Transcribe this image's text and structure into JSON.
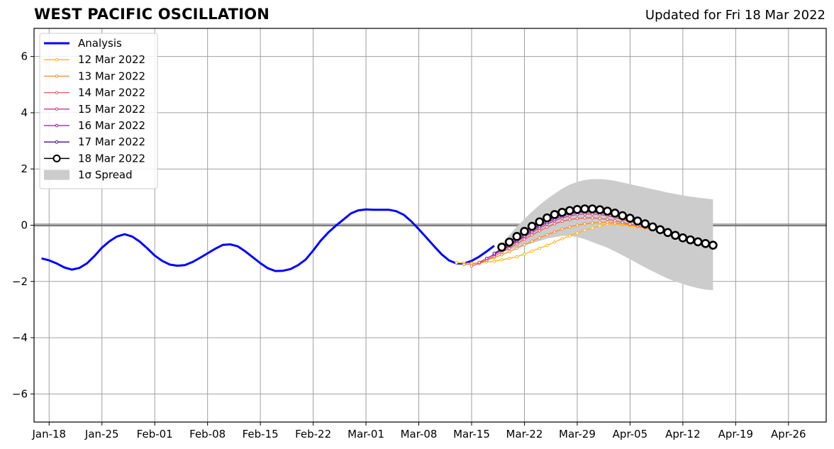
{
  "header": {
    "title": "WEST PACIFIC OSCILLATION",
    "updated": "Updated for Fri 18 Mar 2022"
  },
  "chart_data": {
    "type": "line",
    "title": "WEST PACIFIC OSCILLATION",
    "subtitle": "Updated for Fri 18 Mar 2022",
    "xlabel": "",
    "ylabel": "",
    "xlim": [
      "2022-01-16",
      "2022-05-01"
    ],
    "ylim": [
      -7,
      7
    ],
    "x_ticks": [
      "2022-01-18",
      "2022-01-25",
      "2022-02-01",
      "2022-02-08",
      "2022-02-15",
      "2022-02-22",
      "2022-03-01",
      "2022-03-08",
      "2022-03-15",
      "2022-03-22",
      "2022-03-29",
      "2022-04-05",
      "2022-04-12",
      "2022-04-19",
      "2022-04-26"
    ],
    "x_tick_labels": [
      "Jan-18",
      "Jan-25",
      "Feb-01",
      "Feb-08",
      "Feb-15",
      "Feb-22",
      "Mar-01",
      "Mar-08",
      "Mar-15",
      "Mar-22",
      "Mar-29",
      "Apr-05",
      "Apr-12",
      "Apr-19",
      "Apr-26"
    ],
    "y_ticks": [
      -6,
      -4,
      -2,
      0,
      2,
      4,
      6
    ],
    "y_tick_labels": [
      "−6",
      "−4",
      "−2",
      "0",
      "2",
      "4",
      "6"
    ],
    "grid": true,
    "legend_position": "top-left",
    "analysis": {
      "name": "Analysis",
      "color": "#0000ff",
      "x": [
        "2022-01-17",
        "2022-01-18",
        "2022-01-19",
        "2022-01-20",
        "2022-01-21",
        "2022-01-22",
        "2022-01-23",
        "2022-01-24",
        "2022-01-25",
        "2022-01-26",
        "2022-01-27",
        "2022-01-28",
        "2022-01-29",
        "2022-01-30",
        "2022-01-31",
        "2022-02-01",
        "2022-02-02",
        "2022-02-03",
        "2022-02-04",
        "2022-02-05",
        "2022-02-06",
        "2022-02-07",
        "2022-02-08",
        "2022-02-09",
        "2022-02-10",
        "2022-02-11",
        "2022-02-12",
        "2022-02-13",
        "2022-02-14",
        "2022-02-15",
        "2022-02-16",
        "2022-02-17",
        "2022-02-18",
        "2022-02-19",
        "2022-02-20",
        "2022-02-21",
        "2022-02-22",
        "2022-02-23",
        "2022-02-24",
        "2022-02-25",
        "2022-02-26",
        "2022-02-27",
        "2022-02-28",
        "2022-03-01",
        "2022-03-02",
        "2022-03-03",
        "2022-03-04",
        "2022-03-05",
        "2022-03-06",
        "2022-03-07",
        "2022-03-08",
        "2022-03-09",
        "2022-03-10",
        "2022-03-11",
        "2022-03-12",
        "2022-03-13",
        "2022-03-14",
        "2022-03-15",
        "2022-03-16",
        "2022-03-17",
        "2022-03-18"
      ],
      "values": [
        -1.18,
        -1.25,
        -1.36,
        -1.5,
        -1.58,
        -1.52,
        -1.36,
        -1.1,
        -0.8,
        -0.57,
        -0.4,
        -0.32,
        -0.4,
        -0.58,
        -0.82,
        -1.08,
        -1.27,
        -1.4,
        -1.44,
        -1.42,
        -1.31,
        -1.16,
        -1.0,
        -0.84,
        -0.7,
        -0.68,
        -0.75,
        -0.93,
        -1.14,
        -1.35,
        -1.53,
        -1.63,
        -1.62,
        -1.56,
        -1.42,
        -1.22,
        -0.9,
        -0.55,
        -0.26,
        -0.02,
        0.2,
        0.42,
        0.53,
        0.56,
        0.55,
        0.55,
        0.55,
        0.5,
        0.37,
        0.14,
        -0.14,
        -0.44,
        -0.74,
        -1.03,
        -1.25,
        -1.36,
        -1.36,
        -1.27,
        -1.12,
        -0.93,
        -0.73
      ]
    },
    "spread": {
      "name": "1σ Spread",
      "color": "#cccccc",
      "x": [
        "2022-03-19",
        "2022-03-20",
        "2022-03-21",
        "2022-03-22",
        "2022-03-23",
        "2022-03-24",
        "2022-03-25",
        "2022-03-26",
        "2022-03-27",
        "2022-03-28",
        "2022-03-29",
        "2022-03-30",
        "2022-03-31",
        "2022-04-01",
        "2022-04-02",
        "2022-04-03",
        "2022-04-04",
        "2022-04-05",
        "2022-04-06",
        "2022-04-07",
        "2022-04-08",
        "2022-04-09",
        "2022-04-10",
        "2022-04-11",
        "2022-04-12",
        "2022-04-13",
        "2022-04-14",
        "2022-04-15",
        "2022-04-16"
      ],
      "upper": [
        -0.65,
        -0.35,
        -0.05,
        0.22,
        0.48,
        0.72,
        0.93,
        1.12,
        1.3,
        1.44,
        1.54,
        1.61,
        1.64,
        1.64,
        1.62,
        1.58,
        1.52,
        1.46,
        1.4,
        1.34,
        1.28,
        1.22,
        1.16,
        1.11,
        1.06,
        1.02,
        0.98,
        0.95,
        0.92
      ],
      "lower": [
        -0.95,
        -0.88,
        -0.8,
        -0.72,
        -0.64,
        -0.56,
        -0.48,
        -0.42,
        -0.38,
        -0.38,
        -0.42,
        -0.5,
        -0.6,
        -0.7,
        -0.8,
        -0.93,
        -1.07,
        -1.21,
        -1.36,
        -1.5,
        -1.64,
        -1.77,
        -1.9,
        -2.0,
        -2.09,
        -2.17,
        -2.24,
        -2.29,
        -2.31
      ]
    },
    "series": [
      {
        "name": "12 Mar 2022",
        "color": "#fcb814",
        "x": [
          "2022-03-13",
          "2022-03-14",
          "2022-03-15",
          "2022-03-16",
          "2022-03-17",
          "2022-03-18",
          "2022-03-19",
          "2022-03-20",
          "2022-03-21",
          "2022-03-22",
          "2022-03-23",
          "2022-03-24",
          "2022-03-25",
          "2022-03-26",
          "2022-03-27",
          "2022-03-28",
          "2022-03-29",
          "2022-03-30",
          "2022-03-31",
          "2022-04-01",
          "2022-04-02",
          "2022-04-03",
          "2022-04-04",
          "2022-04-05",
          "2022-04-06",
          "2022-04-07",
          "2022-04-08",
          "2022-04-09",
          "2022-04-10"
        ],
        "values": [
          -1.33,
          -1.35,
          -1.35,
          -1.34,
          -1.31,
          -1.28,
          -1.23,
          -1.18,
          -1.12,
          -1.03,
          -0.92,
          -0.82,
          -0.72,
          -0.6,
          -0.48,
          -0.38,
          -0.28,
          -0.18,
          -0.1,
          -0.02,
          0.03,
          0.04,
          0.02,
          -0.02,
          -0.06,
          -0.1,
          -0.15,
          -0.2,
          -0.28
        ]
      },
      {
        "name": "13 Mar 2022",
        "color": "#f98c2a",
        "x": [
          "2022-03-14",
          "2022-03-15",
          "2022-03-16",
          "2022-03-17",
          "2022-03-18",
          "2022-03-19",
          "2022-03-20",
          "2022-03-21",
          "2022-03-22",
          "2022-03-23",
          "2022-03-24",
          "2022-03-25",
          "2022-03-26",
          "2022-03-27",
          "2022-03-28",
          "2022-03-29",
          "2022-03-30",
          "2022-03-31",
          "2022-04-01",
          "2022-04-02",
          "2022-04-03",
          "2022-04-04",
          "2022-04-05",
          "2022-04-06",
          "2022-04-07",
          "2022-04-08",
          "2022-04-09",
          "2022-04-10",
          "2022-04-11"
        ],
        "values": [
          -1.4,
          -1.38,
          -1.33,
          -1.24,
          -1.15,
          -1.05,
          -0.94,
          -0.82,
          -0.7,
          -0.57,
          -0.45,
          -0.34,
          -0.24,
          -0.14,
          -0.06,
          0.0,
          0.05,
          0.08,
          0.1,
          0.1,
          0.08,
          0.05,
          0.01,
          -0.03,
          -0.08,
          -0.13,
          -0.19,
          -0.25,
          -0.32
        ]
      },
      {
        "name": "14 Mar 2022",
        "color": "#e45a5a",
        "x": [
          "2022-03-15",
          "2022-03-16",
          "2022-03-17",
          "2022-03-18",
          "2022-03-19",
          "2022-03-20",
          "2022-03-21",
          "2022-03-22",
          "2022-03-23",
          "2022-03-24",
          "2022-03-25",
          "2022-03-26",
          "2022-03-27",
          "2022-03-28",
          "2022-03-29",
          "2022-03-30",
          "2022-03-31",
          "2022-04-01",
          "2022-04-02",
          "2022-04-03",
          "2022-04-04",
          "2022-04-05",
          "2022-04-06",
          "2022-04-07",
          "2022-04-08",
          "2022-04-09",
          "2022-04-10",
          "2022-04-11",
          "2022-04-12"
        ],
        "values": [
          -1.45,
          -1.36,
          -1.24,
          -1.1,
          -0.96,
          -0.82,
          -0.66,
          -0.5,
          -0.35,
          -0.2,
          -0.07,
          0.05,
          0.14,
          0.2,
          0.24,
          0.26,
          0.26,
          0.24,
          0.21,
          0.16,
          0.1,
          0.04,
          -0.02,
          -0.08,
          -0.14,
          -0.2,
          -0.26,
          -0.33,
          -0.4
        ]
      },
      {
        "name": "15 Mar 2022",
        "color": "#c43a8c",
        "x": [
          "2022-03-16",
          "2022-03-17",
          "2022-03-18",
          "2022-03-19",
          "2022-03-20",
          "2022-03-21",
          "2022-03-22",
          "2022-03-23",
          "2022-03-24",
          "2022-03-25",
          "2022-03-26",
          "2022-03-27",
          "2022-03-28",
          "2022-03-29",
          "2022-03-30",
          "2022-03-31",
          "2022-04-01",
          "2022-04-02",
          "2022-04-03",
          "2022-04-04",
          "2022-04-05",
          "2022-04-06",
          "2022-04-07",
          "2022-04-08",
          "2022-04-09",
          "2022-04-10",
          "2022-04-11",
          "2022-04-12",
          "2022-04-13",
          "2022-04-14"
        ],
        "values": [
          -1.32,
          -1.18,
          -1.04,
          -0.9,
          -0.75,
          -0.58,
          -0.42,
          -0.26,
          -0.1,
          0.04,
          0.16,
          0.26,
          0.33,
          0.38,
          0.4,
          0.4,
          0.38,
          0.34,
          0.28,
          0.21,
          0.13,
          0.05,
          -0.03,
          -0.11,
          -0.19,
          -0.27,
          -0.35,
          -0.43,
          -0.5,
          -0.56
        ]
      },
      {
        "name": "16 Mar 2022",
        "color": "#8c1aa8",
        "x": [
          "2022-03-17",
          "2022-03-18",
          "2022-03-19",
          "2022-03-20",
          "2022-03-21",
          "2022-03-22",
          "2022-03-23",
          "2022-03-24",
          "2022-03-25",
          "2022-03-26",
          "2022-03-27",
          "2022-03-28",
          "2022-03-29",
          "2022-03-30",
          "2022-03-31",
          "2022-04-01",
          "2022-04-02",
          "2022-04-03",
          "2022-04-04",
          "2022-04-05",
          "2022-04-06",
          "2022-04-07",
          "2022-04-08",
          "2022-04-09",
          "2022-04-10",
          "2022-04-11",
          "2022-04-12",
          "2022-04-13",
          "2022-04-14",
          "2022-04-15"
        ],
        "values": [
          -1.18,
          -1.04,
          -0.88,
          -0.72,
          -0.55,
          -0.38,
          -0.2,
          -0.04,
          0.1,
          0.22,
          0.32,
          0.4,
          0.45,
          0.47,
          0.47,
          0.45,
          0.41,
          0.35,
          0.28,
          0.2,
          0.12,
          0.03,
          -0.06,
          -0.15,
          -0.24,
          -0.33,
          -0.42,
          -0.5,
          -0.57,
          -0.62
        ]
      },
      {
        "name": "17 Mar 2022",
        "color": "#4b0c8c",
        "x": [
          "2022-03-18",
          "2022-03-19",
          "2022-03-20",
          "2022-03-21",
          "2022-03-22",
          "2022-03-23",
          "2022-03-24",
          "2022-03-25",
          "2022-03-26",
          "2022-03-27",
          "2022-03-28",
          "2022-03-29",
          "2022-03-30",
          "2022-03-31",
          "2022-04-01",
          "2022-04-02",
          "2022-04-03",
          "2022-04-04",
          "2022-04-05",
          "2022-04-06",
          "2022-04-07",
          "2022-04-08",
          "2022-04-09",
          "2022-04-10",
          "2022-04-11",
          "2022-04-12",
          "2022-04-13",
          "2022-04-14",
          "2022-04-15",
          "2022-04-16"
        ],
        "values": [
          -1.0,
          -0.84,
          -0.67,
          -0.5,
          -0.32,
          -0.14,
          0.02,
          0.16,
          0.28,
          0.38,
          0.46,
          0.51,
          0.54,
          0.55,
          0.53,
          0.49,
          0.43,
          0.36,
          0.28,
          0.19,
          0.09,
          0.0,
          -0.1,
          -0.2,
          -0.3,
          -0.4,
          -0.49,
          -0.57,
          -0.64,
          -0.7
        ]
      },
      {
        "name": "18 Mar 2022",
        "color": "#000000",
        "x": [
          "2022-03-19",
          "2022-03-20",
          "2022-03-21",
          "2022-03-22",
          "2022-03-23",
          "2022-03-24",
          "2022-03-25",
          "2022-03-26",
          "2022-03-27",
          "2022-03-28",
          "2022-03-29",
          "2022-03-30",
          "2022-03-31",
          "2022-04-01",
          "2022-04-02",
          "2022-04-03",
          "2022-04-04",
          "2022-04-05",
          "2022-04-06",
          "2022-04-07",
          "2022-04-08",
          "2022-04-09",
          "2022-04-10",
          "2022-04-11",
          "2022-04-12",
          "2022-04-13",
          "2022-04-14",
          "2022-04-15",
          "2022-04-16"
        ],
        "values": [
          -0.78,
          -0.6,
          -0.4,
          -0.22,
          -0.04,
          0.12,
          0.26,
          0.38,
          0.46,
          0.52,
          0.56,
          0.58,
          0.58,
          0.55,
          0.5,
          0.43,
          0.34,
          0.25,
          0.15,
          0.05,
          -0.06,
          -0.16,
          -0.26,
          -0.36,
          -0.45,
          -0.52,
          -0.59,
          -0.65,
          -0.71
        ]
      }
    ]
  }
}
